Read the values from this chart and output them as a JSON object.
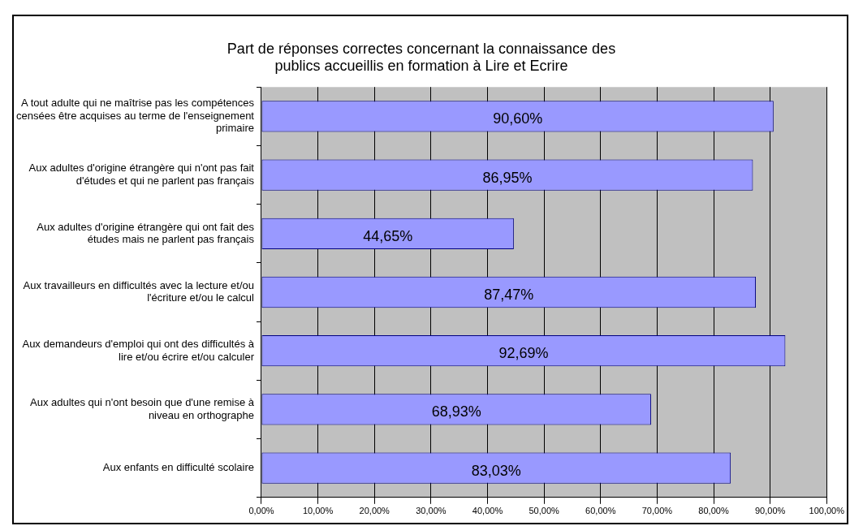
{
  "chart_data": {
    "type": "bar",
    "orientation": "horizontal",
    "title": "Part de réponses correctes concernant la connaissance des publics accueillis en formation à Lire et Ecrire",
    "categories": [
      "A tout adulte qui ne maîtrise pas les compétences censées être acquises au terme de l'enseignement primaire",
      "Aux adultes d'origine étrangère qui n'ont pas fait d'études et qui ne parlent pas français",
      "Aux adultes d'origine étrangère qui ont fait des études mais ne parlent pas français",
      "Aux travailleurs en difficultés avec la lecture et/ou l'écriture et/ou le calcul",
      "Aux demandeurs d'emploi qui ont des difficultés à lire et/ou écrire et/ou calculer",
      "Aux adultes qui n'ont besoin que d'une remise à niveau en orthographe",
      "Aux enfants en difficulté scolaire"
    ],
    "values": [
      90.6,
      86.95,
      44.65,
      87.47,
      92.69,
      68.93,
      83.03
    ],
    "value_labels": [
      "90,60%",
      "86,95%",
      "44,65%",
      "87,47%",
      "92,69%",
      "68,93%",
      "83,03%"
    ],
    "color": "#9999ff",
    "xlim": [
      0,
      100
    ],
    "xticks": [
      {
        "value": 0,
        "label": "0,00%"
      },
      {
        "value": 10,
        "label": "10,00%"
      },
      {
        "value": 20,
        "label": "20,00%"
      },
      {
        "value": 30,
        "label": "30,00%"
      },
      {
        "value": 40,
        "label": "40,00%"
      },
      {
        "value": 50,
        "label": "50,00%"
      },
      {
        "value": 60,
        "label": "60,00%"
      },
      {
        "value": 70,
        "label": "70,00%"
      },
      {
        "value": 80,
        "label": "80,00%"
      },
      {
        "value": 90,
        "label": "90,00%"
      },
      {
        "value": 100,
        "label": "100,00%"
      }
    ],
    "grid": "x",
    "legend": false
  }
}
